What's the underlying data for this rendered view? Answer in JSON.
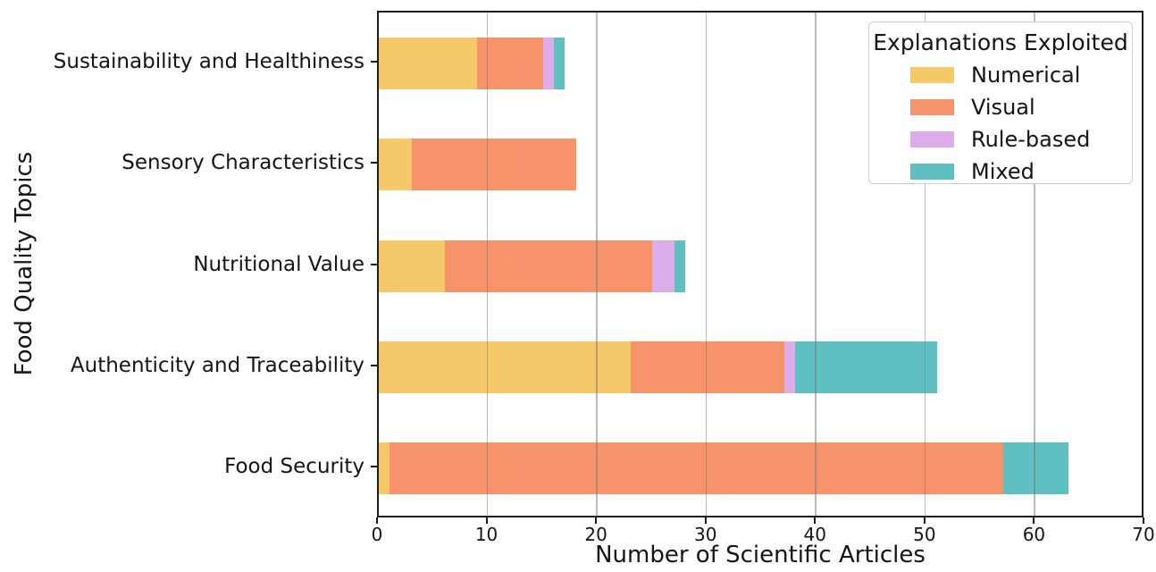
{
  "chart_data": {
    "type": "bar",
    "orientation": "horizontal",
    "stacked": true,
    "title": "",
    "xlabel": "Number of Scientific Articles",
    "ylabel": "Food Quality Topics",
    "categories": [
      "Sustainability and Healthiness",
      "Sensory Characteristics",
      "Nutritional Value",
      "Authenticity and Traceability",
      "Food Security"
    ],
    "series": [
      {
        "name": "Numerical",
        "color": "#F5C96A",
        "values": [
          9,
          3,
          6,
          23,
          1
        ]
      },
      {
        "name": "Visual",
        "color": "#F6936B",
        "values": [
          6,
          15,
          19,
          14,
          56
        ]
      },
      {
        "name": "Rule-based",
        "color": "#DCADEA",
        "values": [
          1,
          0,
          2,
          1,
          0
        ]
      },
      {
        "name": "Mixed",
        "color": "#5FC0C1",
        "values": [
          1,
          0,
          1,
          13,
          6
        ]
      }
    ],
    "xlim": [
      0,
      70
    ],
    "xticks": [
      0,
      10,
      20,
      30,
      40,
      50,
      60,
      70
    ],
    "grid": "vertical",
    "legend": {
      "title": "Explanations Exploited",
      "position": "upper right"
    }
  },
  "colors": {
    "grid": "#bdbdbd",
    "spine": "#1c1c1c",
    "background": "#ffffff"
  }
}
